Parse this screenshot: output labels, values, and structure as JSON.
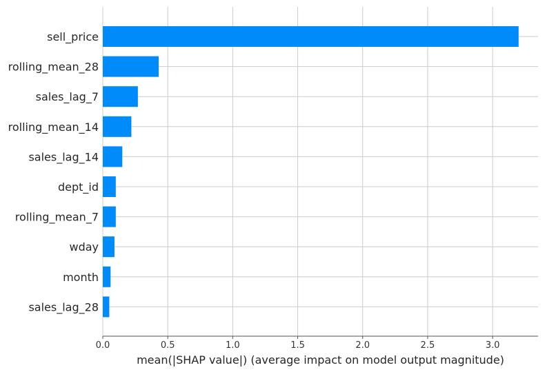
{
  "chart_data": {
    "type": "bar",
    "orientation": "horizontal",
    "categories": [
      "sell_price",
      "rolling_mean_28",
      "sales_lag_7",
      "rolling_mean_14",
      "sales_lag_14",
      "dept_id",
      "rolling_mean_7",
      "wday",
      "month",
      "sales_lag_28"
    ],
    "values": [
      3.2,
      0.43,
      0.27,
      0.22,
      0.15,
      0.1,
      0.1,
      0.09,
      0.06,
      0.05
    ],
    "xlabel": "mean(|SHAP value|) (average impact on model output magnitude)",
    "ylabel": "",
    "title": "",
    "xlim": [
      0,
      3.35
    ],
    "xticks": [
      "0.0",
      "0.5",
      "1.0",
      "1.5",
      "2.0",
      "2.5",
      "3.0"
    ],
    "grid": "vertical and horizontal",
    "bar_color": "#008bfb",
    "grid_color": "#cccccc"
  }
}
